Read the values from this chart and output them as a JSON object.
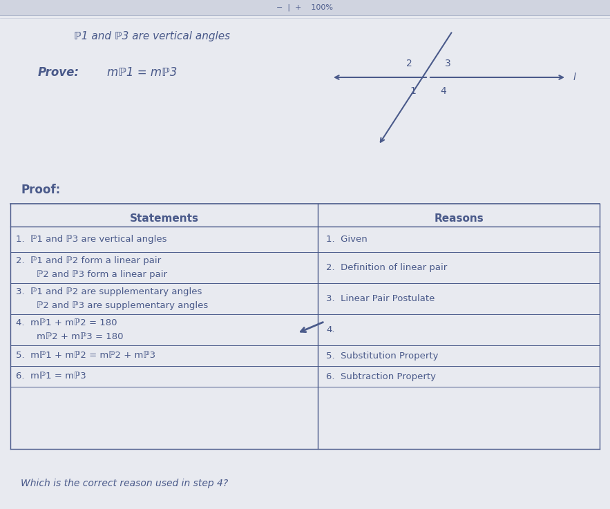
{
  "bg_color": "#e8eaf0",
  "text_color": "#4a5a8a",
  "topbar_color": "#d0d4e0",
  "header_text": "ℙ1 and ℙ3 are vertical angles",
  "prove_label": "Prove:",
  "prove_math": "mℙ1 = mℙ3",
  "proof_label": "Proof:",
  "statements_header": "Statements",
  "reasons_header": "Reasons",
  "rows": [
    {
      "step": "1.",
      "statement": "ℙ1 and ℙ3 are vertical angles",
      "statement2": "",
      "reason": "1.  Given"
    },
    {
      "step": "2.",
      "statement": "ℙ1 and ℙ2 form a linear pair",
      "statement2": "ℙ2 and ℙ3 form a linear pair",
      "reason": "2.  Definition of linear pair"
    },
    {
      "step": "3.",
      "statement": "ℙ1 and ℙ2 are supplementary angles",
      "statement2": "ℙ2 and ℙ3 are supplementary angles",
      "reason": "3.  Linear Pair Postulate"
    },
    {
      "step": "4.",
      "statement": "mℙ1 + mℙ2 = 180",
      "statement2": "mℙ2 + mℙ3 = 180",
      "reason": "4."
    },
    {
      "step": "5.",
      "statement": "mℙ1 + mℙ2 = mℙ2 + mℙ3",
      "statement2": "",
      "reason": "5.  Substitution Property"
    },
    {
      "step": "6.",
      "statement": "mℙ1 = mℙ3",
      "statement2": "",
      "reason": "6.  Subtraction Property"
    }
  ],
  "bottom_question": "Which is the correct reason used in step 4?",
  "top_bar_text": "−  |  +    100%"
}
